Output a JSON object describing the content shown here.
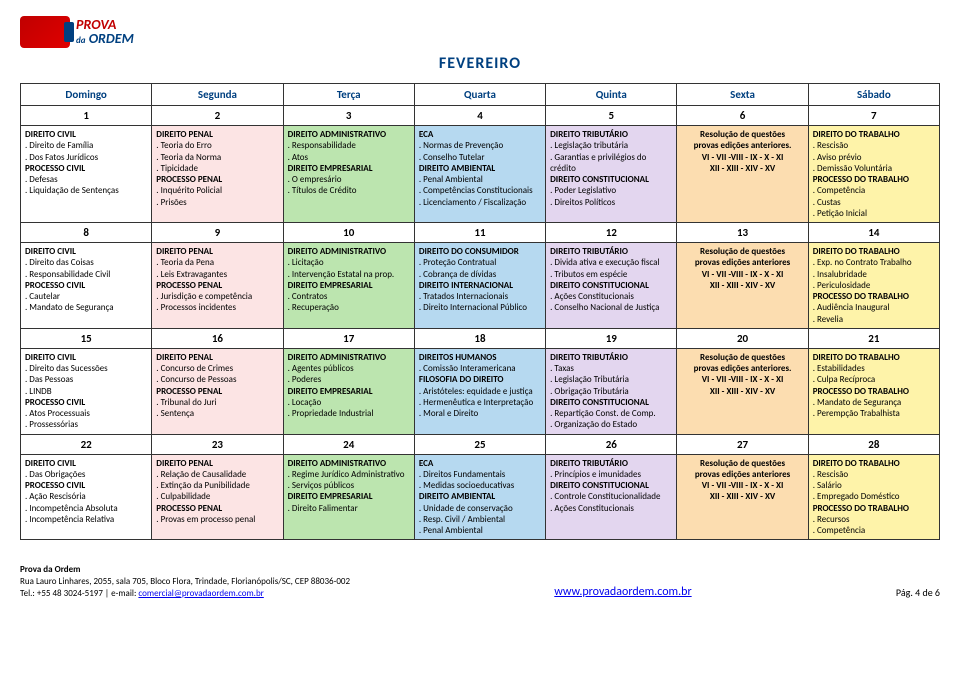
{
  "logo": {
    "line1": "PROVA",
    "line2": "ORDEM",
    "da": "da"
  },
  "month": "FEVEREIRO",
  "days": [
    "Domingo",
    "Segunda",
    "Terça",
    "Quarta",
    "Quinta",
    "Sexta",
    "Sábado"
  ],
  "nums": [
    [
      "1",
      "2",
      "3",
      "4",
      "5",
      "6",
      "7"
    ],
    [
      "8",
      "9",
      "10",
      "11",
      "12",
      "13",
      "14"
    ],
    [
      "15",
      "16",
      "17",
      "18",
      "19",
      "20",
      "21"
    ],
    [
      "22",
      "23",
      "24",
      "25",
      "26",
      "27",
      "28"
    ]
  ],
  "colors": {
    "white": "c-white",
    "pink": "c-pink",
    "green": "c-green",
    "blue": "c-blue",
    "purple": "c-purple",
    "orange": "c-orange",
    "yellow": "c-yellow"
  },
  "rows": [
    [
      {
        "color": "white",
        "lines": [
          {
            "t": "DIREITO CIVIL",
            "b": 1
          },
          {
            "t": ". Direito de Família"
          },
          {
            "t": ". Dos Fatos Jurídicos"
          },
          {
            "t": " "
          },
          {
            "t": "PROCESSO CIVIL",
            "b": 1
          },
          {
            "t": ". Defesas"
          },
          {
            "t": ". Liquidação de Sentenças"
          }
        ]
      },
      {
        "color": "pink",
        "lines": [
          {
            "t": "DIREITO PENAL",
            "b": 1
          },
          {
            "t": ". Teoria do Erro"
          },
          {
            "t": ". Teoria da Norma"
          },
          {
            "t": ". Tipicidade"
          },
          {
            "t": "PROCESSO PENAL",
            "b": 1
          },
          {
            "t": ". Inquérito Policial"
          },
          {
            "t": ". Prisões"
          }
        ]
      },
      {
        "color": "green",
        "lines": [
          {
            "t": "DIREITO ADMINISTRATIVO",
            "b": 1
          },
          {
            "t": ". Responsabilidade"
          },
          {
            "t": ". Atos"
          },
          {
            "t": " "
          },
          {
            "t": "DIREITO EMPRESARIAL",
            "b": 1
          },
          {
            "t": ". O empresário"
          },
          {
            "t": ". Títulos de Crédito"
          }
        ]
      },
      {
        "color": "blue",
        "lines": [
          {
            "t": "ECA",
            "b": 1
          },
          {
            "t": ". Normas de Prevenção"
          },
          {
            "t": ". Conselho Tutelar"
          },
          {
            "t": "DIREITO AMBIENTAL",
            "b": 1
          },
          {
            "t": ". Penal Ambiental"
          },
          {
            "t": ". Competências Constitucionais"
          },
          {
            "t": ". Licenciamento / Fiscalização"
          }
        ]
      },
      {
        "color": "purple",
        "lines": [
          {
            "t": "DIREITO TRIBUTÁRIO",
            "b": 1
          },
          {
            "t": ". Legislação tributária"
          },
          {
            "t": ". Garantias e privilégios do"
          },
          {
            "t": "crédito"
          },
          {
            "t": "DIREITO CONSTITUCIONAL",
            "b": 1
          },
          {
            "t": ". Poder Legislativo"
          },
          {
            "t": ". Direitos Políticos"
          }
        ]
      },
      {
        "color": "orange",
        "lines": [
          {
            "t": " "
          },
          {
            "t": "Resolução de questões",
            "b": 1
          },
          {
            "t": "provas edições anteriores.",
            "b": 1
          },
          {
            "t": "VI - VII -VIII - IX - X - XI"
          },
          {
            "t": "XII - XIII - XIV - XV"
          }
        ],
        "center": true
      },
      {
        "color": "yellow",
        "lines": [
          {
            "t": "DIREITO DO TRABALHO",
            "b": 1
          },
          {
            "t": ". Rescisão"
          },
          {
            "t": ". Aviso prévio"
          },
          {
            "t": ". Demissão Voluntária"
          },
          {
            "t": "PROCESSO DO TRABALHO",
            "b": 1
          },
          {
            "t": ". Competência"
          },
          {
            "t": ". Custas"
          },
          {
            "t": ". Petição Inicial"
          }
        ]
      }
    ],
    [
      {
        "color": "white",
        "lines": [
          {
            "t": "DIREITO CIVIL",
            "b": 1
          },
          {
            "t": ". Direito das Coisas"
          },
          {
            "t": ". Responsabilidade Civil"
          },
          {
            "t": " "
          },
          {
            "t": "PROCESSO CIVIL",
            "b": 1
          },
          {
            "t": ". Cautelar"
          },
          {
            "t": ". Mandato de Segurança"
          }
        ]
      },
      {
        "color": "pink",
        "lines": [
          {
            "t": "DIREITO PENAL",
            "b": 1
          },
          {
            "t": ". Teoria da Pena"
          },
          {
            "t": ". Leis Extravagantes"
          },
          {
            "t": " "
          },
          {
            "t": "PROCESSO PENAL",
            "b": 1
          },
          {
            "t": ". Jurisdição e competência"
          },
          {
            "t": ". Processos incidentes"
          }
        ]
      },
      {
        "color": "green",
        "lines": [
          {
            "t": "DIREITO ADMINISTRATIVO",
            "b": 1
          },
          {
            "t": ". Licitação"
          },
          {
            "t": ". Intervenção Estatal na prop."
          },
          {
            "t": " "
          },
          {
            "t": "DIREITO EMPRESARIAL",
            "b": 1
          },
          {
            "t": ". Contratos"
          },
          {
            "t": ". Recuperação"
          }
        ]
      },
      {
        "color": "blue",
        "lines": [
          {
            "t": " "
          },
          {
            "t": "DIREITO DO CONSUMIDOR",
            "b": 1
          },
          {
            "t": ". Proteção Contratual"
          },
          {
            "t": ". Cobrança de dívidas"
          },
          {
            "t": "DIREITO INTERNACIONAL",
            "b": 1
          },
          {
            "t": ". Tratados Internacionais"
          },
          {
            "t": ". Direito Internacional Público"
          }
        ]
      },
      {
        "color": "purple",
        "lines": [
          {
            "t": " "
          },
          {
            "t": "DIREITO TRIBUTÁRIO",
            "b": 1
          },
          {
            "t": ". Divida ativa e execução fiscal"
          },
          {
            "t": ". Tributos em espécie"
          },
          {
            "t": "DIREITO CONSTITUCIONAL",
            "b": 1
          },
          {
            "t": ". Ações Constitucionais"
          },
          {
            "t": ". Conselho Nacional de Justiça"
          }
        ]
      },
      {
        "color": "orange",
        "lines": [
          {
            "t": " "
          },
          {
            "t": "Resolução de questões",
            "b": 1
          },
          {
            "t": "provas edições anteriores",
            "b": 1
          },
          {
            "t": "VI - VII -VIII - IX - X - XI"
          },
          {
            "t": "XII - XIII - XIV - XV"
          }
        ],
        "center": true
      },
      {
        "color": "yellow",
        "lines": [
          {
            "t": "DIREITO DO TRABALHO",
            "b": 1
          },
          {
            "t": ". Exp. no Contrato Trabalho"
          },
          {
            "t": ". Insalubridade"
          },
          {
            "t": ". Periculosidade"
          },
          {
            "t": "PROCESSO DO TRABALHO",
            "b": 1
          },
          {
            "t": ". Audiência Inaugural"
          },
          {
            "t": ". Revelia"
          }
        ]
      }
    ],
    [
      {
        "color": "white",
        "lines": [
          {
            "t": "DIREITO CIVIL",
            "b": 1
          },
          {
            "t": ". Direito das Sucessões"
          },
          {
            "t": ". Das Pessoas"
          },
          {
            "t": ". LINDB"
          },
          {
            "t": "PROCESSO CIVIL",
            "b": 1
          },
          {
            "t": ". Atos Processuais"
          },
          {
            "t": ". Prossessórias"
          }
        ]
      },
      {
        "color": "pink",
        "lines": [
          {
            "t": "DIREITO PENAL",
            "b": 1
          },
          {
            "t": ". Concurso de Crimes"
          },
          {
            "t": ". Concurso de Pessoas"
          },
          {
            "t": " "
          },
          {
            "t": "PROCESSO PENAL",
            "b": 1
          },
          {
            "t": ". Tribunal do Juri"
          },
          {
            "t": ". Sentença"
          }
        ]
      },
      {
        "color": "green",
        "lines": [
          {
            "t": " "
          },
          {
            "t": "DIREITO ADMINISTRATIVO",
            "b": 1
          },
          {
            "t": ". Agentes públicos"
          },
          {
            "t": ". Poderes"
          },
          {
            "t": "DIREITO EMPRESARIAL",
            "b": 1
          },
          {
            "t": ". Locação"
          },
          {
            "t": ". Propriedade Industrial"
          }
        ]
      },
      {
        "color": "blue",
        "lines": [
          {
            "t": "DIREITOS HUMANOS",
            "b": 1
          },
          {
            "t": ". Comissão Interamericana"
          },
          {
            "t": "FILOSOFIA DO DIREITO",
            "b": 1
          },
          {
            "t": ". Aristóteles: equidade e justiça"
          },
          {
            "t": ". Hermenêutica e Interpretação"
          },
          {
            "t": ". Moral e Direito"
          }
        ]
      },
      {
        "color": "purple",
        "lines": [
          {
            "t": "DIREITO TRIBUTÁRIO",
            "b": 1
          },
          {
            "t": ". Taxas"
          },
          {
            "t": ". Legislação Tributária"
          },
          {
            "t": ". Obrigação Tributária"
          },
          {
            "t": "DIREITO CONSTITUCIONAL",
            "b": 1
          },
          {
            "t": ". Repartição Const. de Comp."
          },
          {
            "t": ". Organização do Estado"
          }
        ]
      },
      {
        "color": "orange",
        "lines": [
          {
            "t": " "
          },
          {
            "t": "Resolução de questões",
            "b": 1
          },
          {
            "t": "provas edições anteriores.",
            "b": 1
          },
          {
            "t": "VI - VII -VIII - IX - X - XI"
          },
          {
            "t": "XII - XIII - XIV - XV"
          }
        ],
        "center": true
      },
      {
        "color": "yellow",
        "lines": [
          {
            "t": " "
          },
          {
            "t": "DIREITO DO TRABALHO",
            "b": 1
          },
          {
            "t": ". Estabilidades"
          },
          {
            "t": ". Culpa Recíproca"
          },
          {
            "t": "PROCESSO DO TRABALHO",
            "b": 1
          },
          {
            "t": ". Mandato de Segurança"
          },
          {
            "t": ". Perempção Trabalhista"
          }
        ]
      }
    ],
    [
      {
        "color": "white",
        "lines": [
          {
            "t": " "
          },
          {
            "t": "DIREITO CIVIL",
            "b": 1
          },
          {
            "t": ". Das Obrigações"
          },
          {
            "t": "PROCESSO CIVIL",
            "b": 1
          },
          {
            "t": ". Ação Rescisória"
          },
          {
            "t": ". Incompetência Absoluta"
          },
          {
            "t": ". Incompetência Relativa"
          }
        ]
      },
      {
        "color": "pink",
        "lines": [
          {
            "t": " "
          },
          {
            "t": "DIREITO PENAL",
            "b": 1
          },
          {
            "t": ". Relação de Causalidade"
          },
          {
            "t": ". Extinção da Punibilidade"
          },
          {
            "t": ". Culpabilidade"
          },
          {
            "t": "PROCESSO PENAL",
            "b": 1
          },
          {
            "t": ". Provas em processo penal"
          }
        ]
      },
      {
        "color": "green",
        "lines": [
          {
            "t": " "
          },
          {
            "t": "DIREITO ADMINISTRATIVO",
            "b": 1
          },
          {
            "t": ". Regime Jurídico Administrativo"
          },
          {
            "t": ". Serviços públicos"
          },
          {
            "t": " "
          },
          {
            "t": "DIREITO EMPRESARIAL",
            "b": 1
          },
          {
            "t": ". Direito Falimentar"
          }
        ]
      },
      {
        "color": "blue",
        "lines": [
          {
            "t": "ECA",
            "b": 1
          },
          {
            "t": ". Direitos Fundamentais"
          },
          {
            "t": ". Medidas socioeducativas"
          },
          {
            "t": "DIREITO AMBIENTAL",
            "b": 1
          },
          {
            "t": ". Unidade de conservação"
          },
          {
            "t": ". Resp. Civil / Ambiental"
          },
          {
            "t": ". Penal Ambiental"
          }
        ]
      },
      {
        "color": "purple",
        "lines": [
          {
            "t": " "
          },
          {
            "t": "DIREITO TRIBUTÁRIO",
            "b": 1
          },
          {
            "t": ". Princípios e imunidades"
          },
          {
            "t": " "
          },
          {
            "t": "DIREITO CONSTITUCIONAL",
            "b": 1
          },
          {
            "t": ". Controle Constitucionalidade"
          },
          {
            "t": ". Ações Constitucionais"
          }
        ]
      },
      {
        "color": "orange",
        "lines": [
          {
            "t": " "
          },
          {
            "t": "Resolução de questões",
            "b": 1
          },
          {
            "t": "provas edições anteriores",
            "b": 1
          },
          {
            "t": "VI - VII -VIII - IX - X - XI"
          },
          {
            "t": "XII - XIII - XIV - XV"
          }
        ],
        "center": true
      },
      {
        "color": "yellow",
        "lines": [
          {
            "t": "DIREITO DO TRABALHO",
            "b": 1
          },
          {
            "t": ". Rescisão"
          },
          {
            "t": ". Salário"
          },
          {
            "t": ". Empregado Doméstico"
          },
          {
            "t": "PROCESSO DO TRABALHO",
            "b": 1
          },
          {
            "t": ". Recursos"
          },
          {
            "t": ". Competência"
          }
        ]
      }
    ]
  ],
  "footer": {
    "title": "Prova da Ordem",
    "addr": "Rua Lauro Linhares, 2055, sala 705, Bloco Flora, Trindade, Florianópolis/SC, CEP 88036-002",
    "tel": "Tel.: +55 48 3024-5197 | e-mail: ",
    "email": "comercial@provadaordem.com.br",
    "site": "www.provadaordem.com.br",
    "page": "Pág. 4 de 6"
  }
}
